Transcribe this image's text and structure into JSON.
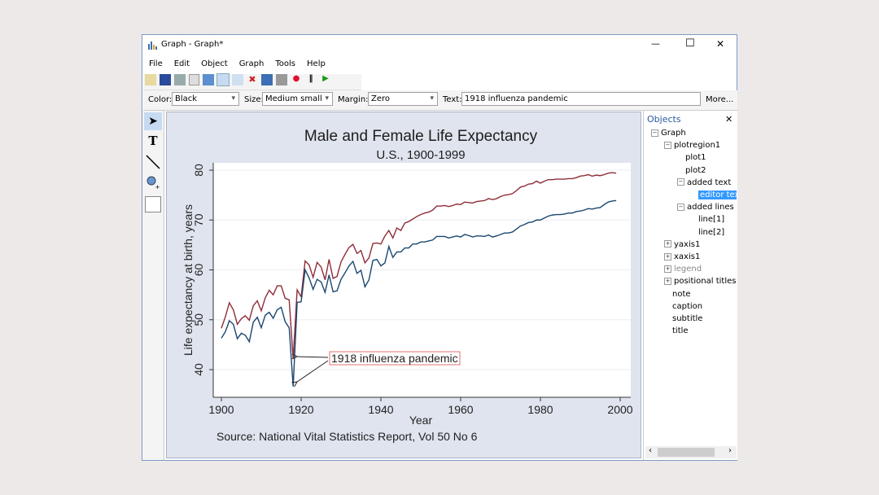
{
  "window": {
    "title": "Graph - Graph*",
    "min": "—",
    "max": "☐",
    "close": "✕"
  },
  "menu": [
    "File",
    "Edit",
    "Object",
    "Graph",
    "Tools",
    "Help"
  ],
  "props": {
    "color_label": "Color:",
    "color": "Black",
    "size_label": "Size:",
    "size": "Medium small",
    "margin_label": "Margin:",
    "margin": "Zero",
    "text_label": "Text:",
    "text": "1918 influenza pandemic",
    "more": "More..."
  },
  "objects": {
    "title": "Objects",
    "close": "✕",
    "tree": [
      {
        "label": "Graph",
        "depth": 0,
        "exp": "-"
      },
      {
        "label": "plotregion1",
        "depth": 1,
        "exp": "-"
      },
      {
        "label": "plot1",
        "depth": 2,
        "exp": ""
      },
      {
        "label": "plot2",
        "depth": 2,
        "exp": ""
      },
      {
        "label": "added text",
        "depth": 2,
        "exp": "-"
      },
      {
        "label": "editor tex",
        "depth": 3,
        "exp": "",
        "selected": true
      },
      {
        "label": "added lines",
        "depth": 2,
        "exp": "-"
      },
      {
        "label": "line[1]",
        "depth": 3,
        "exp": ""
      },
      {
        "label": "line[2]",
        "depth": 3,
        "exp": ""
      },
      {
        "label": "yaxis1",
        "depth": 1,
        "exp": "+"
      },
      {
        "label": "xaxis1",
        "depth": 1,
        "exp": "+"
      },
      {
        "label": "legend",
        "depth": 1,
        "exp": "+",
        "dim": true
      },
      {
        "label": "positional titles",
        "depth": 1,
        "exp": "+"
      },
      {
        "label": "note",
        "depth": 1,
        "exp": ""
      },
      {
        "label": "caption",
        "depth": 1,
        "exp": ""
      },
      {
        "label": "subtitle",
        "depth": 1,
        "exp": ""
      },
      {
        "label": "title",
        "depth": 1,
        "exp": ""
      }
    ]
  },
  "colors": {
    "female": "#8f2d38",
    "male": "#1a476f",
    "graph_bg": "#dfe4ee",
    "accent": "#3399ff"
  },
  "chart_data": {
    "type": "line",
    "title": "Male and Female Life Expectancy",
    "subtitle": "U.S., 1900-1999",
    "xlabel": "Year",
    "ylabel": "Life expectancy at birth, years",
    "note": "Source: National Vital Statistics Report, Vol 50 No 6",
    "annotation": "1918 influenza pandemic",
    "xlim": [
      1900,
      2000
    ],
    "ylim": [
      35,
      82
    ],
    "xticks": [
      1900,
      1920,
      1940,
      1960,
      1980,
      2000
    ],
    "yticks": [
      40,
      50,
      60,
      70,
      80
    ],
    "grid": true,
    "x_start": 1900,
    "series": [
      {
        "values": [
          48.3,
          50.6,
          53.4,
          52.0,
          49.1,
          50.2,
          50.8,
          49.9,
          52.8,
          53.8,
          51.8,
          54.4,
          55.9,
          55.0,
          56.8,
          56.8,
          54.3,
          54.0,
          42.2,
          56.0,
          54.6,
          61.8,
          61.0,
          58.5,
          61.5,
          60.6,
          58.0,
          62.1,
          58.3,
          58.7,
          61.6,
          63.1,
          64.5,
          65.1,
          63.3,
          63.9,
          61.4,
          62.4,
          65.3,
          65.4,
          65.2,
          66.8,
          67.9,
          66.4,
          68.4,
          67.9,
          69.4,
          69.7,
          70.2,
          70.7,
          71.1,
          71.4,
          71.6,
          72.0,
          72.8,
          72.8,
          72.9,
          72.7,
          72.9,
          73.2,
          73.1,
          73.6,
          73.5,
          73.4,
          73.7,
          73.8,
          73.9,
          74.3,
          74.1,
          74.3,
          74.7,
          75.0,
          75.1,
          75.3,
          75.9,
          76.6,
          76.8,
          77.2,
          77.3,
          77.8,
          77.4,
          77.8,
          78.1,
          78.1,
          78.2,
          78.2,
          78.2,
          78.3,
          78.3,
          78.5,
          78.8,
          78.9,
          79.1,
          78.8,
          79.0,
          78.9,
          79.1,
          79.4,
          79.5,
          79.4
        ]
      },
      {
        "values": [
          46.3,
          47.6,
          49.8,
          49.1,
          46.2,
          47.3,
          46.9,
          45.6,
          49.5,
          50.5,
          48.4,
          50.9,
          51.5,
          50.3,
          52.0,
          52.5,
          49.6,
          48.4,
          36.6,
          53.5,
          53.6,
          60.0,
          58.4,
          56.1,
          58.1,
          57.6,
          55.5,
          59.0,
          55.6,
          55.8,
          58.1,
          59.4,
          60.8,
          61.7,
          59.3,
          59.9,
          56.6,
          58.0,
          61.9,
          62.1,
          60.8,
          61.4,
          64.7,
          62.5,
          63.6,
          63.6,
          64.4,
          64.4,
          65.2,
          65.2,
          65.6,
          65.6,
          65.8,
          66.0,
          66.7,
          66.7,
          66.7,
          66.4,
          66.6,
          66.8,
          66.6,
          67.1,
          66.9,
          66.6,
          66.8,
          66.8,
          66.7,
          67.0,
          66.6,
          66.8,
          67.1,
          67.4,
          67.4,
          67.6,
          68.2,
          68.8,
          69.1,
          69.5,
          69.6,
          70.0,
          70.0,
          70.4,
          70.8,
          71.0,
          71.1,
          71.1,
          71.2,
          71.4,
          71.4,
          71.7,
          71.8,
          72.0,
          72.3,
          72.2,
          72.4,
          72.5,
          73.1,
          73.6,
          73.8,
          73.9
        ]
      }
    ]
  }
}
